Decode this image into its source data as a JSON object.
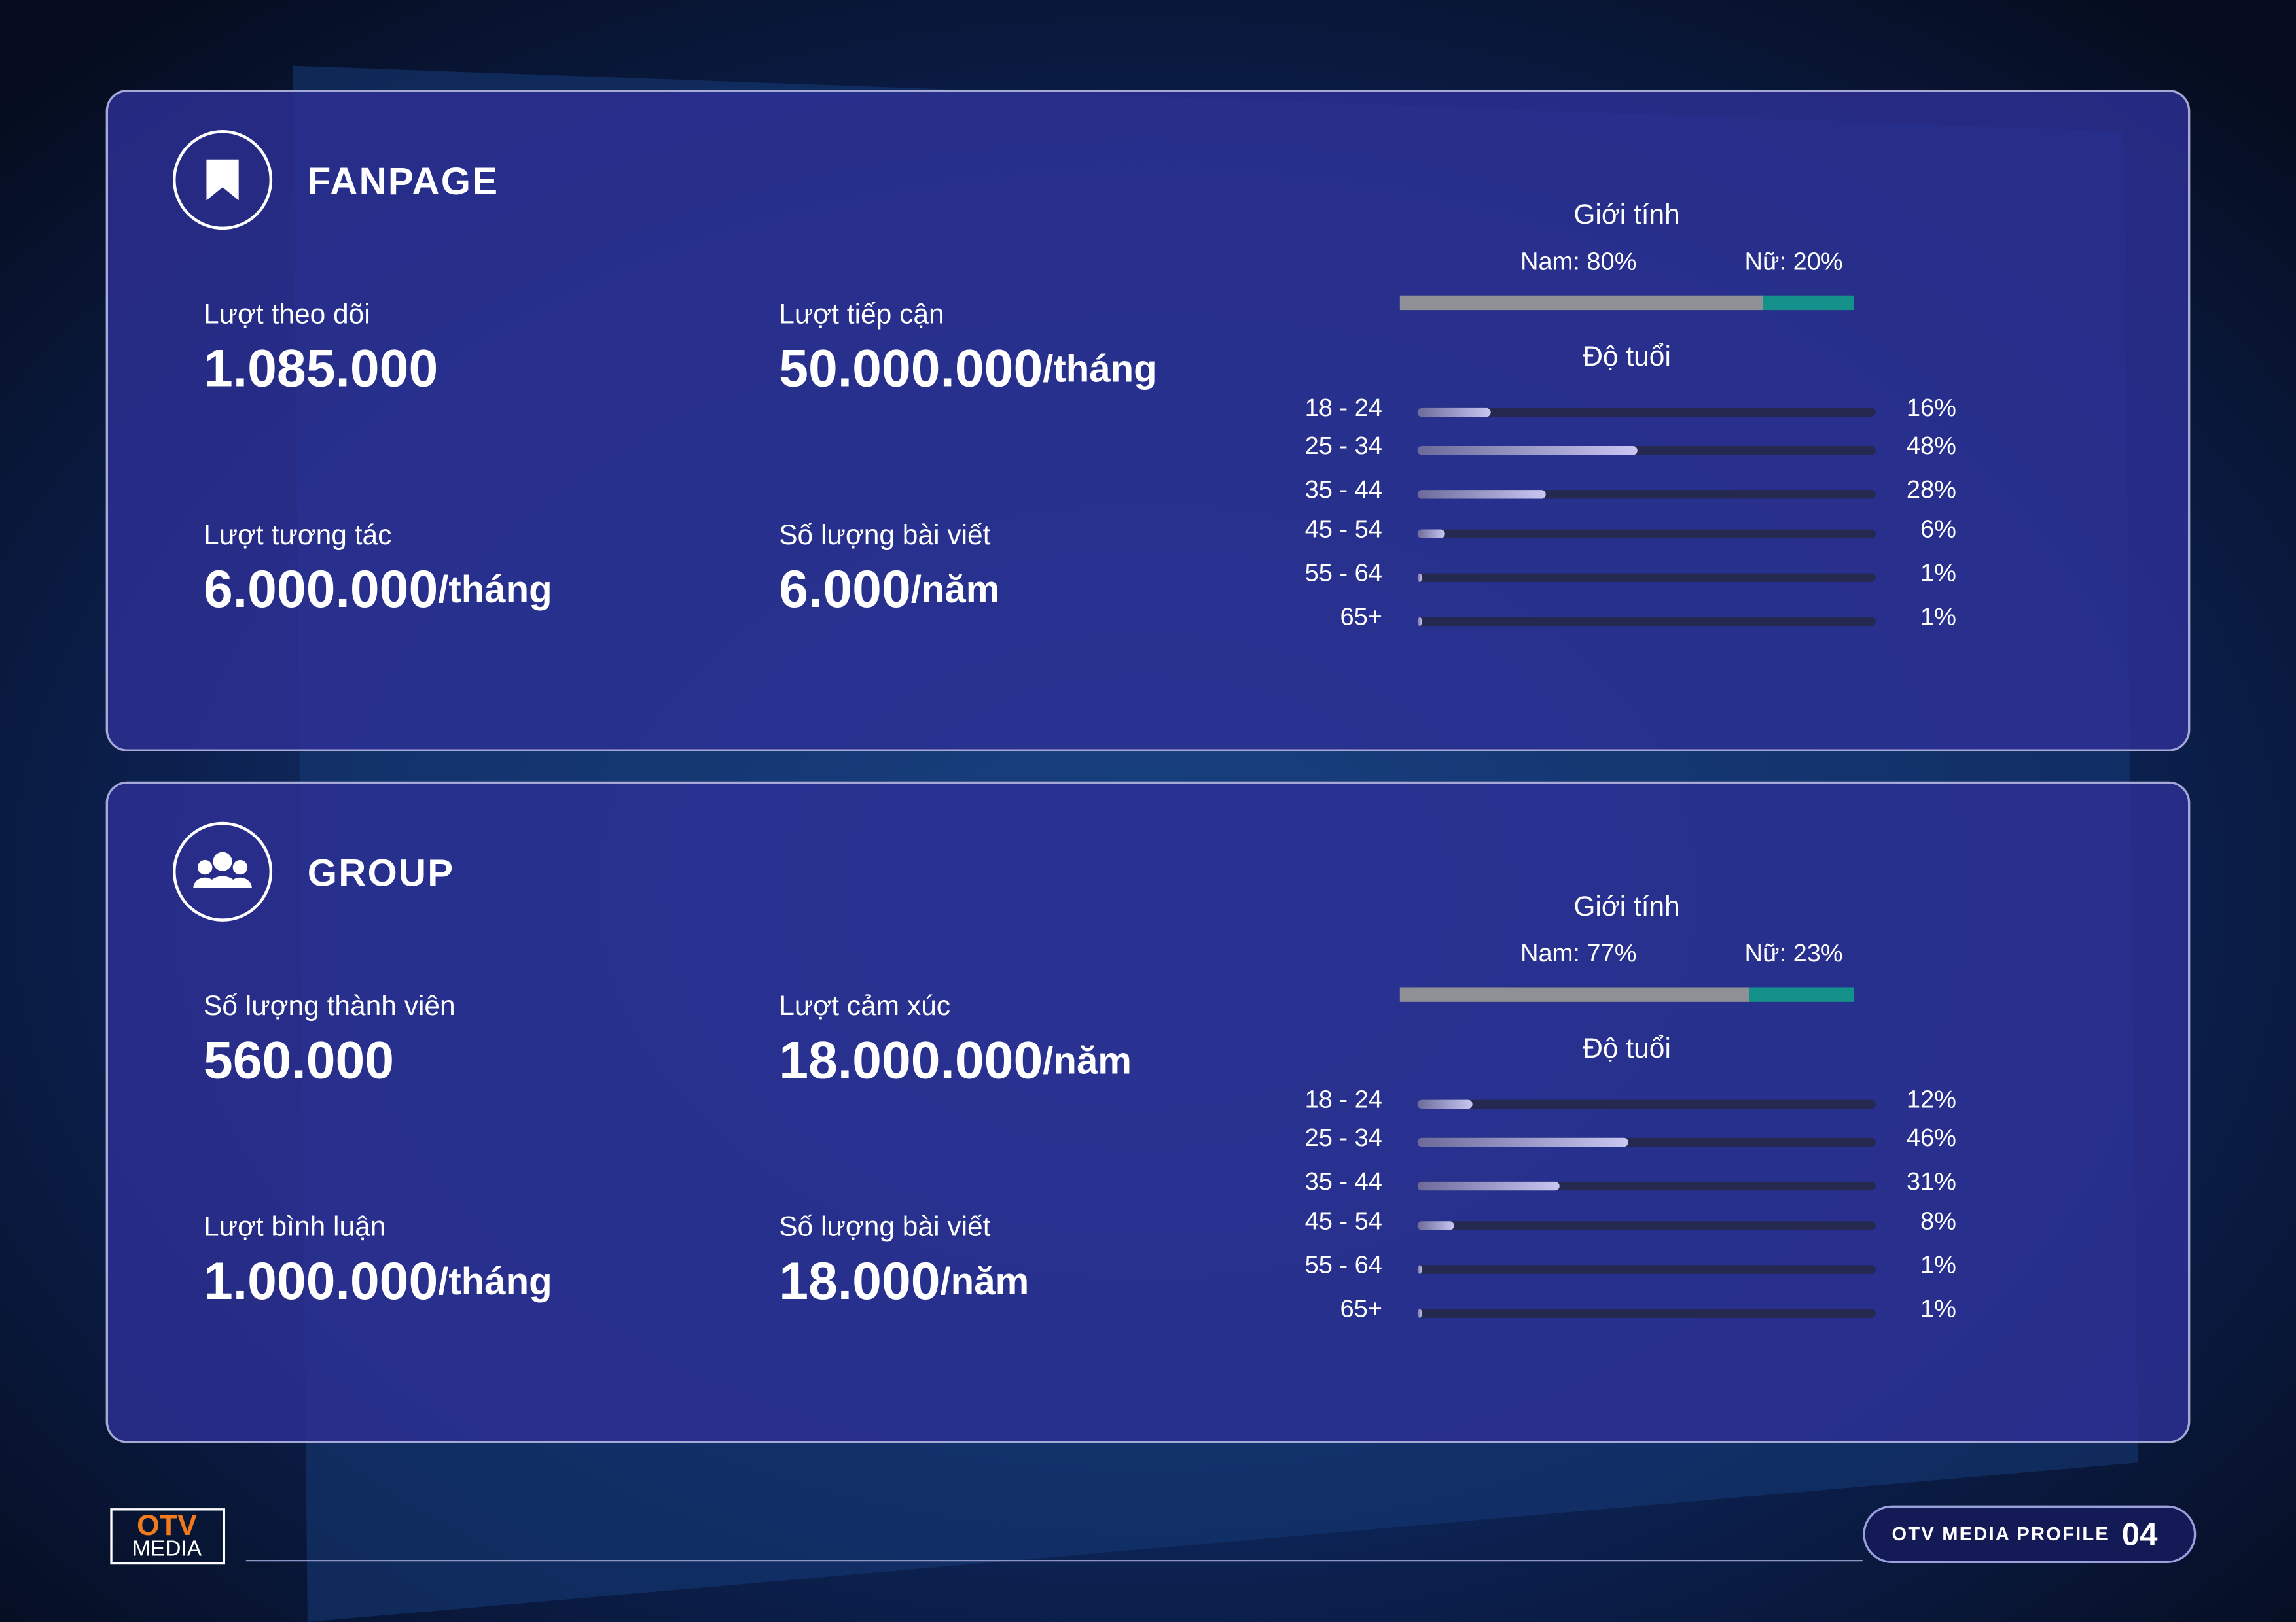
{
  "panels": [
    {
      "title": "FANPAGE",
      "stats": [
        {
          "label": "Lượt theo dõi",
          "value": "1.085.000"
        },
        {
          "label": "Lượt tiếp cận",
          "value": "50.000.000",
          "unit": "/tháng"
        },
        {
          "label": "Lượt tương tác",
          "value": "6.000.000",
          "unit": "/tháng"
        },
        {
          "label": "Số lượng bài viết",
          "value": "6.000",
          "unit": "/năm"
        }
      ],
      "gender": {
        "title": "Giới tính",
        "male": {
          "value": 80,
          "label": "Nam: 80%"
        },
        "female": {
          "value": 20,
          "label": "Nữ: 20%"
        }
      },
      "age": {
        "title": "Độ tuổi",
        "groups": [
          {
            "name": "18 - 24",
            "value": 16,
            "label": "16%"
          },
          {
            "name": "25 - 34",
            "value": 48,
            "label": "48%"
          },
          {
            "name": "35 - 44",
            "value": 28,
            "label": "28%"
          },
          {
            "name": "45 - 54",
            "value": 6,
            "label": "6%"
          },
          {
            "name": "55 - 64",
            "value": 1,
            "label": "1%"
          },
          {
            "name": "65+",
            "value": 1,
            "label": "1%"
          }
        ]
      }
    },
    {
      "title": "GROUP",
      "stats": [
        {
          "label": "Số lượng thành viên",
          "value": "560.000"
        },
        {
          "label": "Lượt cảm xúc",
          "value": "18.000.000",
          "unit": "/năm"
        },
        {
          "label": "Lượt bình luận",
          "value": "1.000.000",
          "unit": "/tháng"
        },
        {
          "label": "Số lượng bài viết",
          "value": "18.000",
          "unit": "/năm"
        }
      ],
      "gender": {
        "title": "Giới tính",
        "male": {
          "value": 77,
          "label": "Nam: 77%"
        },
        "female": {
          "value": 23,
          "label": "Nữ: 23%"
        }
      },
      "age": {
        "title": "Độ tuổi",
        "groups": [
          {
            "name": "18 - 24",
            "value": 12,
            "label": "12%"
          },
          {
            "name": "25 - 34",
            "value": 46,
            "label": "46%"
          },
          {
            "name": "35 - 44",
            "value": 31,
            "label": "31%"
          },
          {
            "name": "45 - 54",
            "value": 8,
            "label": "8%"
          },
          {
            "name": "55 - 64",
            "value": 1,
            "label": "1%"
          },
          {
            "name": "65+",
            "value": 1,
            "label": "1%"
          }
        ]
      }
    }
  ],
  "footer": {
    "logo_top": "OTV",
    "logo_bottom": "MEDIA",
    "caption": "OTV MEDIA PROFILE",
    "page": "04"
  }
}
